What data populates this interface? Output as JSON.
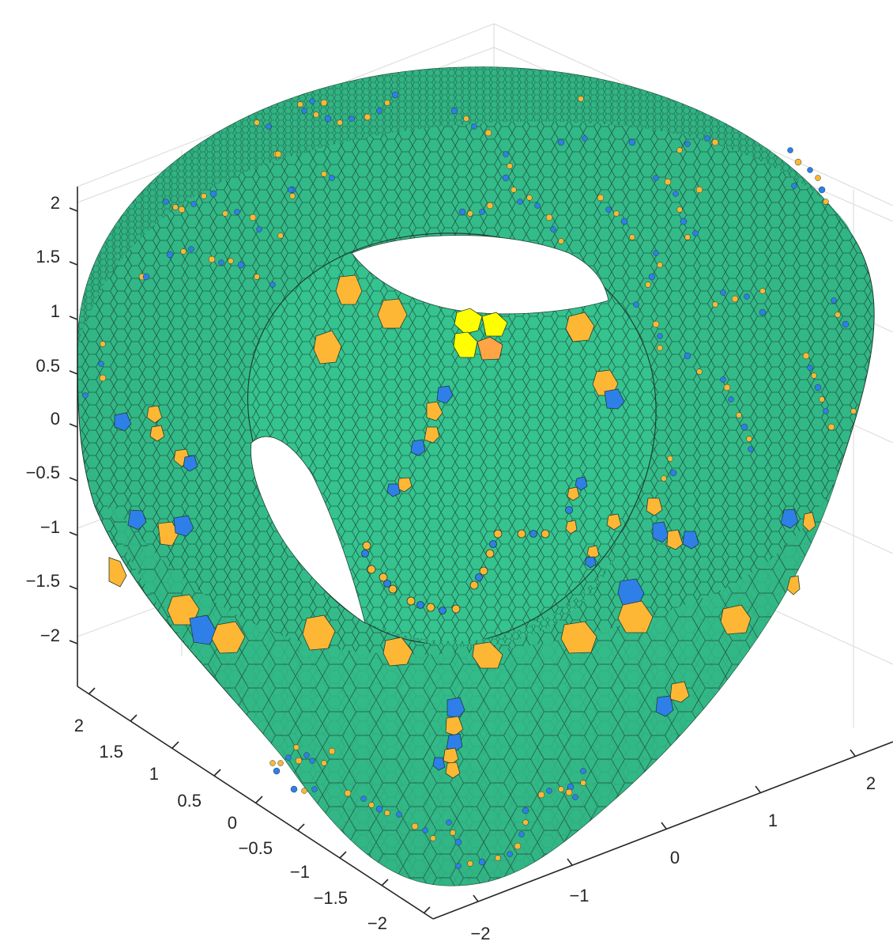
{
  "chart_data": {
    "type": "3d-surface",
    "description_visible": "Voronoi-tessellated closed surface with a central through-hole, viewed in 3D",
    "colors": {
      "hexagon_cell": "#35c38f",
      "heptagon_cell": "#fdb735",
      "pentagon_cell": "#2f7fe8",
      "highlight_cell": "#ffff00",
      "highlight_orange": "#ffa545",
      "cell_edge": "#1f3f33",
      "grid": "#d9d9d9",
      "axis": "#262626"
    },
    "axes": {
      "z": {
        "ticks": [
          2,
          1.5,
          1,
          0.5,
          0,
          -0.5,
          -1,
          -1.5,
          -2
        ],
        "labels": [
          "2",
          "1.5",
          "1",
          "0.5",
          "0",
          "−0.5",
          "−1",
          "−1.5",
          "−2"
        ]
      },
      "y": {
        "ticks": [
          2,
          1.5,
          1,
          0.5,
          0,
          -0.5,
          -1,
          -1.5,
          -2
        ],
        "labels": [
          "2",
          "1.5",
          "1",
          "0.5",
          "0",
          "−0.5",
          "−1",
          "−1.5",
          "−2"
        ]
      },
      "x": {
        "ticks": [
          2,
          1,
          0,
          -1,
          -2
        ],
        "labels": [
          "2",
          "1",
          "0",
          "−1",
          "−2"
        ]
      }
    },
    "grid": true
  }
}
